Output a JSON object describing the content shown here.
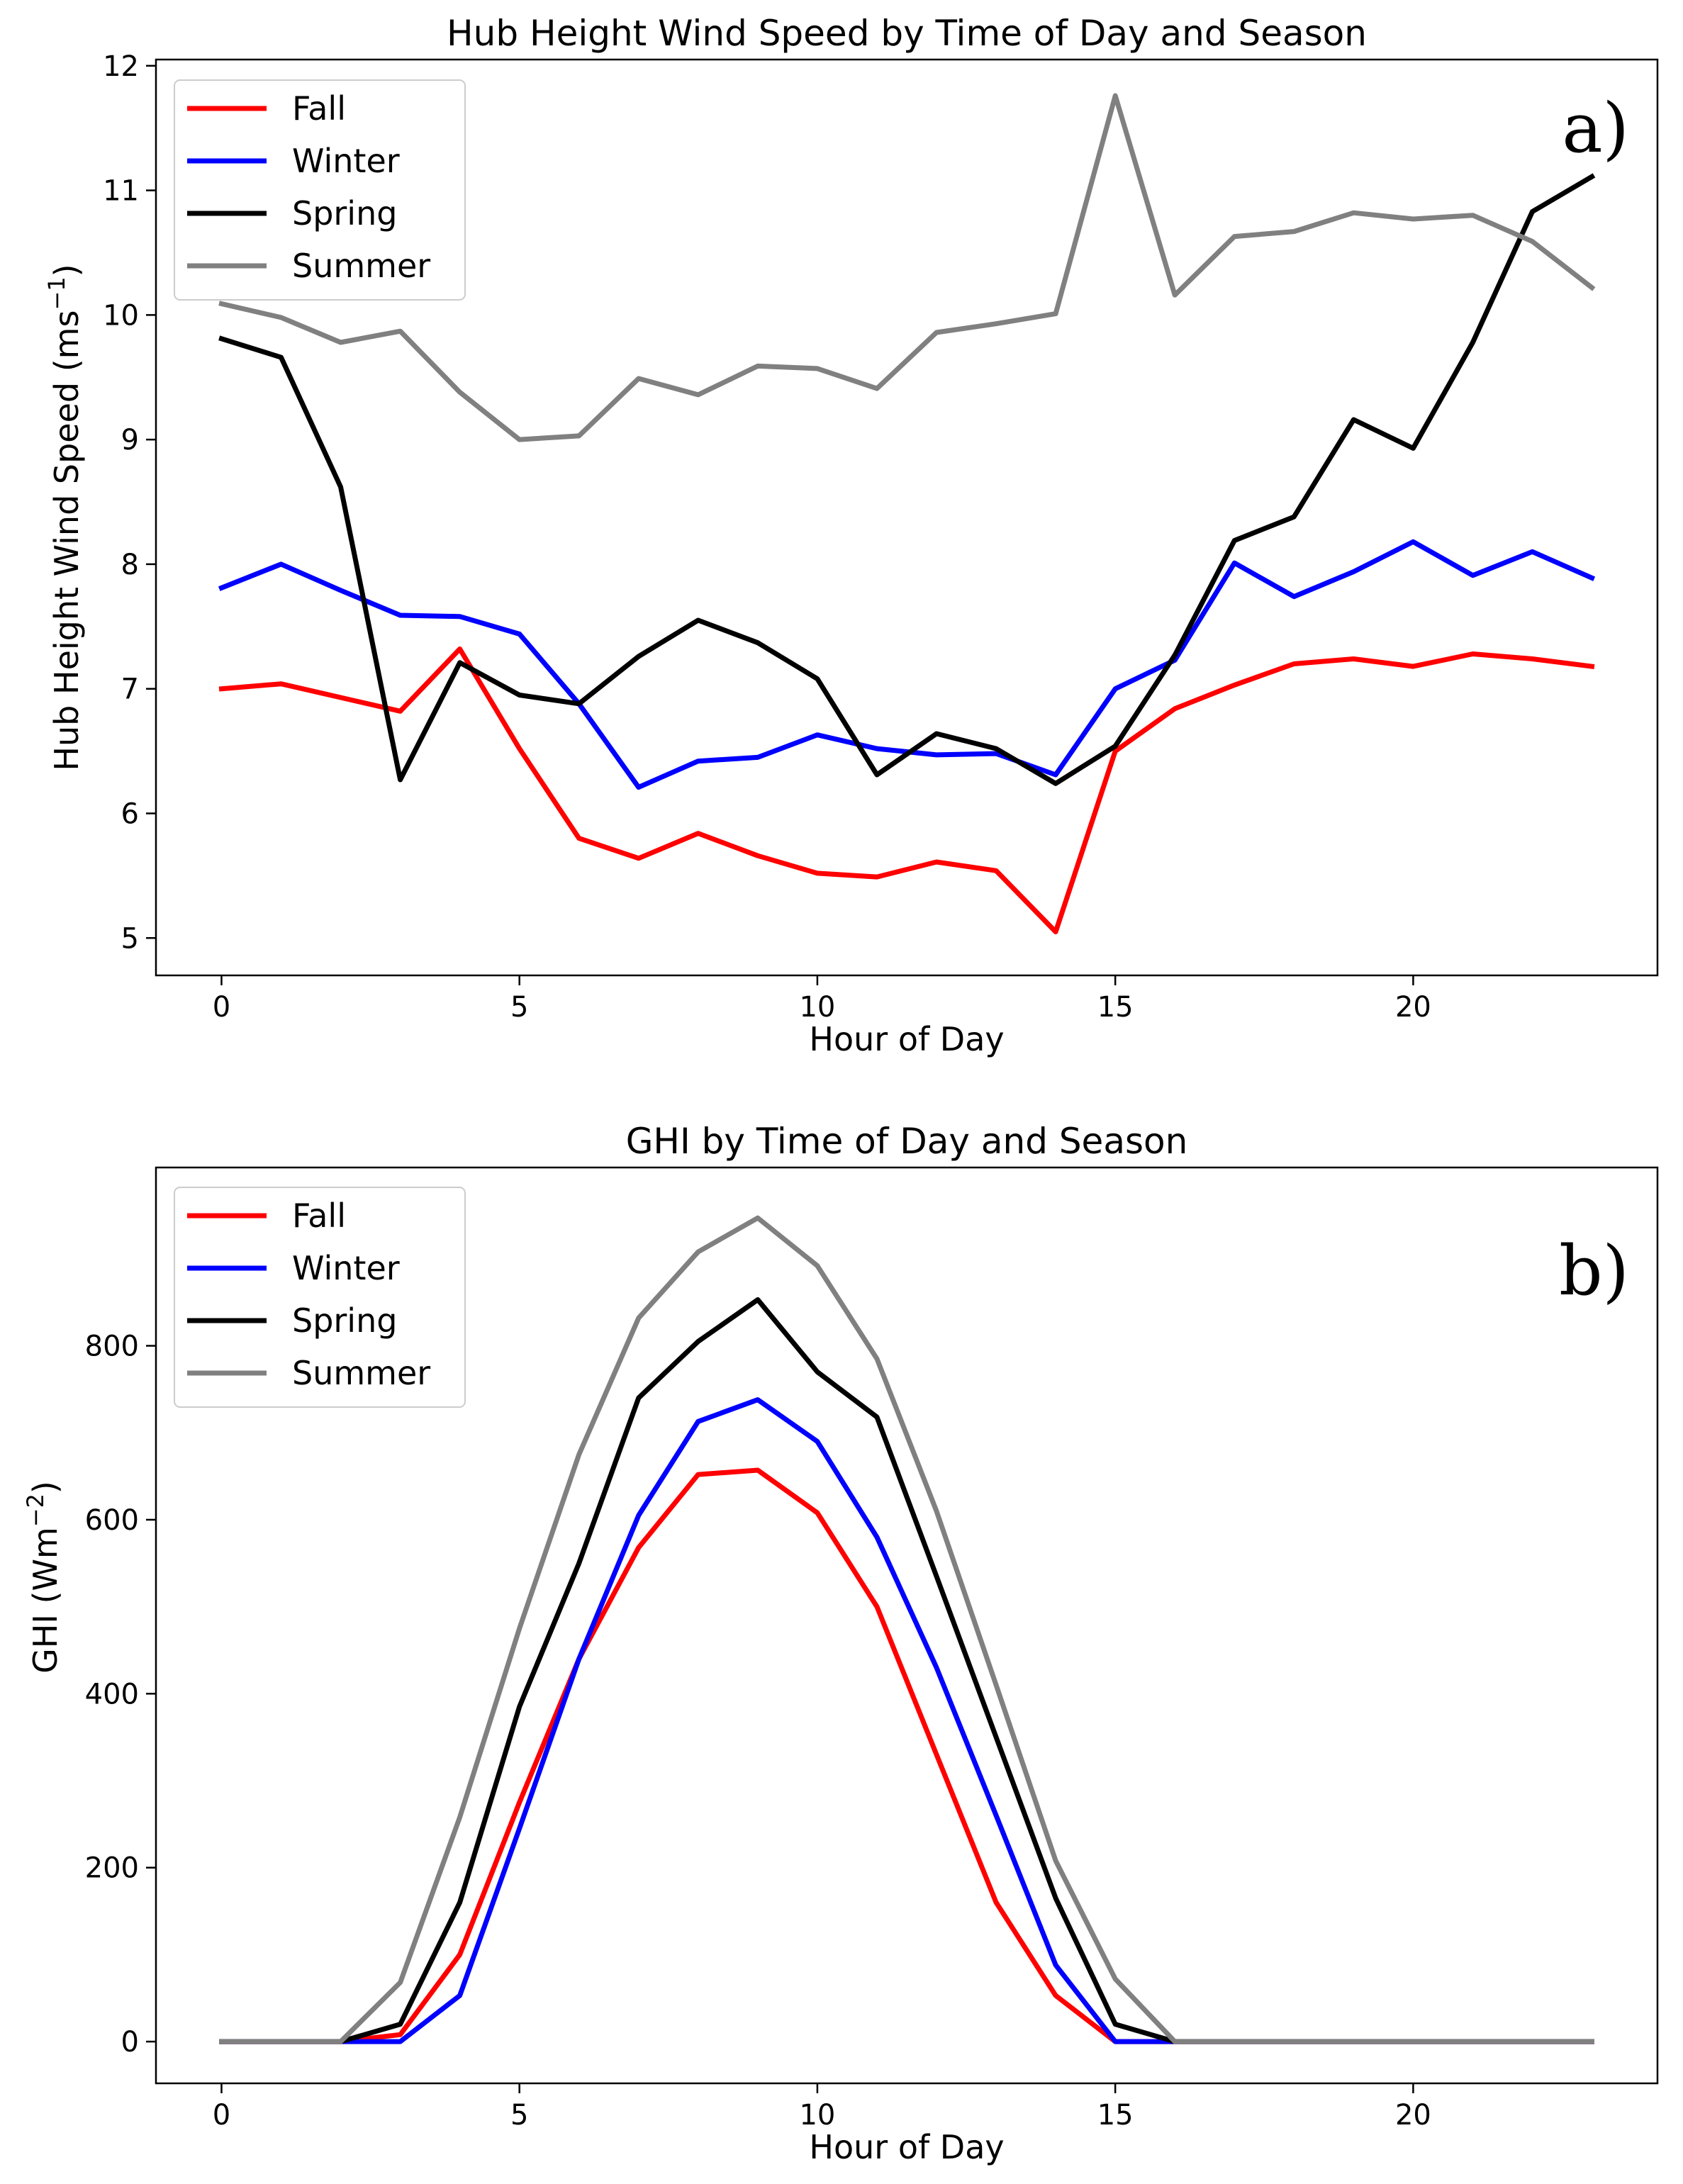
{
  "chart_data": [
    {
      "type": "line",
      "title": "Hub Height Wind Speed by Time of Day and Season",
      "xlabel": "Hour of Day",
      "ylabel_main": "Hub Height Wind Speed (ms",
      "ylabel_sup": "−1",
      "ylabel_close": ")",
      "panel_label": "a)",
      "xlim": [
        -1.1,
        24.1
      ],
      "ylim": [
        4.7,
        12.05
      ],
      "x_ticks": [
        0,
        5,
        10,
        15,
        20
      ],
      "y_ticks": [
        5,
        6,
        7,
        8,
        9,
        10,
        11,
        12
      ],
      "x": [
        0,
        1,
        2,
        3,
        4,
        5,
        6,
        7,
        8,
        9,
        10,
        11,
        12,
        13,
        14,
        15,
        16,
        17,
        18,
        19,
        20,
        21,
        22,
        23
      ],
      "series": [
        {
          "name": "Fall",
          "color": "#ff0000",
          "values": [
            7.0,
            7.04,
            6.93,
            6.82,
            7.32,
            6.52,
            5.8,
            5.64,
            5.84,
            5.66,
            5.52,
            5.49,
            5.61,
            5.54,
            5.05,
            6.5,
            6.84,
            7.03,
            7.2,
            7.24,
            7.18,
            7.28,
            7.24,
            7.18
          ]
        },
        {
          "name": "Winter",
          "color": "#0000ff",
          "values": [
            7.81,
            8.0,
            7.79,
            7.59,
            7.58,
            7.44,
            6.88,
            6.21,
            6.42,
            6.45,
            6.63,
            6.52,
            6.47,
            6.48,
            6.31,
            7.0,
            7.23,
            8.01,
            7.74,
            7.94,
            8.18,
            7.91,
            8.1,
            7.89
          ]
        },
        {
          "name": "Spring",
          "color": "#000000",
          "values": [
            9.81,
            9.66,
            8.62,
            6.27,
            7.21,
            6.95,
            6.88,
            7.26,
            7.55,
            7.37,
            7.08,
            6.31,
            6.64,
            6.52,
            6.24,
            6.54,
            7.27,
            8.19,
            8.38,
            9.16,
            8.93,
            9.78,
            10.83,
            11.11
          ]
        },
        {
          "name": "Summer",
          "color": "#808080",
          "values": [
            10.09,
            9.98,
            9.78,
            9.87,
            9.38,
            9.0,
            9.03,
            9.49,
            9.36,
            9.59,
            9.57,
            9.41,
            9.86,
            9.93,
            10.01,
            11.76,
            10.16,
            10.63,
            10.67,
            10.82,
            10.77,
            10.8,
            10.59,
            10.22
          ]
        }
      ]
    },
    {
      "type": "line",
      "title": "GHI by Time of Day and Season",
      "xlabel": "Hour of Day",
      "ylabel_main": "GHI (Wm",
      "ylabel_sup": "−2",
      "ylabel_close": ")",
      "panel_label": "b)",
      "xlim": [
        -1.1,
        24.1
      ],
      "ylim": [
        -48,
        1005
      ],
      "x_ticks": [
        0,
        5,
        10,
        15,
        20
      ],
      "y_ticks": [
        0,
        200,
        400,
        600,
        800
      ],
      "x": [
        0,
        1,
        2,
        3,
        4,
        5,
        6,
        7,
        8,
        9,
        10,
        11,
        12,
        13,
        14,
        15,
        16,
        17,
        18,
        19,
        20,
        21,
        22,
        23
      ],
      "series": [
        {
          "name": "Fall",
          "color": "#ff0000",
          "values": [
            0,
            0,
            0,
            8,
            100,
            275,
            440,
            568,
            652,
            657,
            608,
            500,
            330,
            160,
            53,
            0,
            0,
            0,
            0,
            0,
            0,
            0,
            0,
            0
          ]
        },
        {
          "name": "Winter",
          "color": "#0000ff",
          "values": [
            0,
            0,
            0,
            0,
            53,
            245,
            440,
            605,
            713,
            738,
            690,
            580,
            430,
            260,
            88,
            0,
            0,
            0,
            0,
            0,
            0,
            0,
            0,
            0
          ]
        },
        {
          "name": "Spring",
          "color": "#000000",
          "values": [
            0,
            0,
            0,
            20,
            160,
            385,
            550,
            740,
            805,
            853,
            770,
            718,
            535,
            350,
            165,
            20,
            0,
            0,
            0,
            0,
            0,
            0,
            0,
            0
          ]
        },
        {
          "name": "Summer",
          "color": "#808080",
          "values": [
            0,
            0,
            0,
            68,
            258,
            475,
            675,
            832,
            908,
            947,
            892,
            785,
            610,
            410,
            208,
            72,
            0,
            0,
            0,
            0,
            0,
            0,
            0,
            0
          ]
        }
      ]
    }
  ]
}
